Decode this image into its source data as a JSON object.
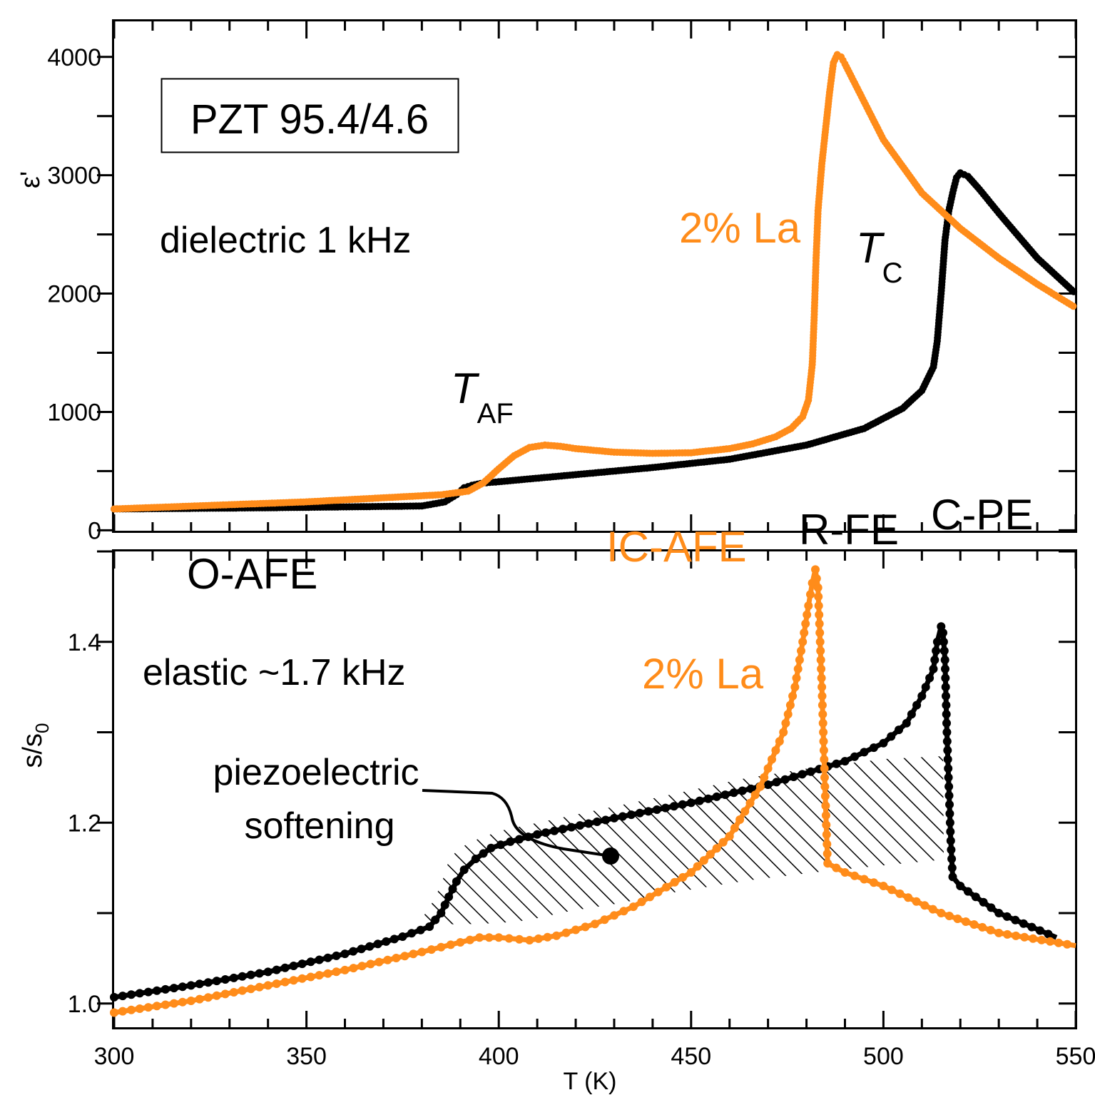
{
  "colors": {
    "pure": "#000000",
    "la": "#ff8c1a"
  },
  "chart_data": [
    {
      "type": "line",
      "panel": "top",
      "title": "",
      "xlabel": "T (K)",
      "ylabel": "ε'",
      "xlim": [
        300,
        550
      ],
      "ylim": [
        -10,
        4300
      ],
      "xticks": [
        300,
        350,
        400,
        450,
        500,
        550
      ],
      "ytick_labels": [
        {
          "v": 0,
          "t": "0"
        },
        {
          "v": 1000,
          "t": "1000"
        },
        {
          "v": 2000,
          "t": "2000"
        },
        {
          "v": 3000,
          "t": "3000"
        },
        {
          "v": 4000,
          "t": "4000"
        }
      ],
      "series": [
        {
          "name": "PZT 95.4/4.6",
          "color": "#000000",
          "x": [
            300,
            340,
            380,
            386,
            389,
            391,
            393,
            396,
            400,
            420,
            440,
            460,
            480,
            495,
            505,
            510,
            513,
            514,
            515,
            516,
            517,
            518,
            519,
            520,
            522,
            525,
            530,
            540,
            550
          ],
          "y": [
            180,
            190,
            205,
            240,
            300,
            360,
            380,
            400,
            410,
            470,
            530,
            600,
            720,
            860,
            1030,
            1180,
            1380,
            1600,
            2000,
            2450,
            2700,
            2850,
            2980,
            3020,
            2990,
            2880,
            2680,
            2300,
            2000
          ]
        },
        {
          "name": "2% La",
          "color": "#ff8c1a",
          "x": [
            300,
            350,
            385,
            392,
            396,
            400,
            404,
            408,
            412,
            416,
            420,
            430,
            440,
            450,
            460,
            466,
            472,
            476,
            479,
            480.5,
            481.5,
            482,
            482.5,
            483,
            484,
            486,
            487,
            488,
            489,
            490,
            495,
            500,
            510,
            520,
            530,
            540,
            550
          ],
          "y": [
            180,
            240,
            300,
            330,
            400,
            520,
            630,
            700,
            720,
            710,
            690,
            660,
            650,
            655,
            690,
            730,
            790,
            860,
            960,
            1100,
            1400,
            1800,
            2300,
            2700,
            3100,
            3700,
            3950,
            4020,
            4000,
            3940,
            3620,
            3300,
            2850,
            2550,
            2300,
            2080,
            1880
          ]
        }
      ],
      "annotations": [
        {
          "text": "PZT 95.4/4.6",
          "boxed": true
        },
        {
          "text": "dielectric 1 kHz"
        },
        {
          "text": "T",
          "sub": "AF"
        },
        {
          "text": "T",
          "sub": "C"
        },
        {
          "text": "2% La",
          "color": "#ff8c1a"
        },
        {
          "text": "C-PE"
        }
      ]
    },
    {
      "type": "line",
      "panel": "bottom",
      "title": "",
      "xlabel": "T (K)",
      "ylabel": "s/s",
      "ylabel_sub": "0",
      "xlim": [
        300,
        550
      ],
      "ylim": [
        0.973,
        1.5
      ],
      "xticks": [
        300,
        350,
        400,
        450,
        500,
        550
      ],
      "xtick_labels": [
        {
          "v": 300,
          "t": "300"
        },
        {
          "v": 350,
          "t": "350"
        },
        {
          "v": 400,
          "t": "400"
        },
        {
          "v": 450,
          "t": "450"
        },
        {
          "v": 500,
          "t": "500"
        },
        {
          "v": 550,
          "t": "550"
        }
      ],
      "ytick_labels": [
        {
          "v": 1.0,
          "t": "1.0"
        },
        {
          "v": 1.2,
          "t": "1.2"
        },
        {
          "v": 1.4,
          "t": "1.4"
        }
      ],
      "series": [
        {
          "name": "PZT 95.4/4.6",
          "color": "#000000",
          "x": [
            300,
            320,
            340,
            360,
            375,
            382,
            385,
            387,
            389,
            391,
            394,
            398,
            403,
            410,
            430,
            450,
            470,
            490,
            500,
            506,
            510,
            513,
            514,
            515,
            515.5,
            516,
            516.5,
            517,
            517.5,
            518,
            520,
            530,
            545
          ],
          "y": [
            1.007,
            1.02,
            1.035,
            1.055,
            1.074,
            1.085,
            1.1,
            1.118,
            1.135,
            1.148,
            1.16,
            1.172,
            1.179,
            1.187,
            1.205,
            1.222,
            1.242,
            1.268,
            1.288,
            1.31,
            1.34,
            1.37,
            1.4,
            1.417,
            1.41,
            1.38,
            1.3,
            1.24,
            1.18,
            1.14,
            1.13,
            1.1,
            1.073
          ]
        },
        {
          "name": "2% La",
          "color": "#ff8c1a",
          "x": [
            300,
            320,
            340,
            360,
            380,
            395,
            400,
            408,
            415,
            425,
            435,
            450,
            460,
            468,
            474,
            477,
            479,
            480.5,
            481.5,
            482.3,
            483,
            484,
            484.8,
            485.5,
            490,
            500,
            515,
            530,
            550
          ],
          "y": [
            0.99,
            1.003,
            1.02,
            1.037,
            1.057,
            1.073,
            1.073,
            1.07,
            1.075,
            1.088,
            1.107,
            1.145,
            1.185,
            1.24,
            1.3,
            1.35,
            1.4,
            1.44,
            1.465,
            1.48,
            1.46,
            1.35,
            1.24,
            1.155,
            1.145,
            1.13,
            1.1,
            1.078,
            1.064
          ]
        }
      ],
      "annotations": [
        {
          "text": "O-AFE"
        },
        {
          "text": "IC-AFE",
          "color": "#ff8c1a"
        },
        {
          "text": "R-FE"
        },
        {
          "text": "elastic ~1.7 kHz"
        },
        {
          "text": "2% La",
          "color": "#ff8c1a"
        },
        {
          "text": "piezoelectric"
        },
        {
          "text": "softening"
        }
      ]
    }
  ]
}
